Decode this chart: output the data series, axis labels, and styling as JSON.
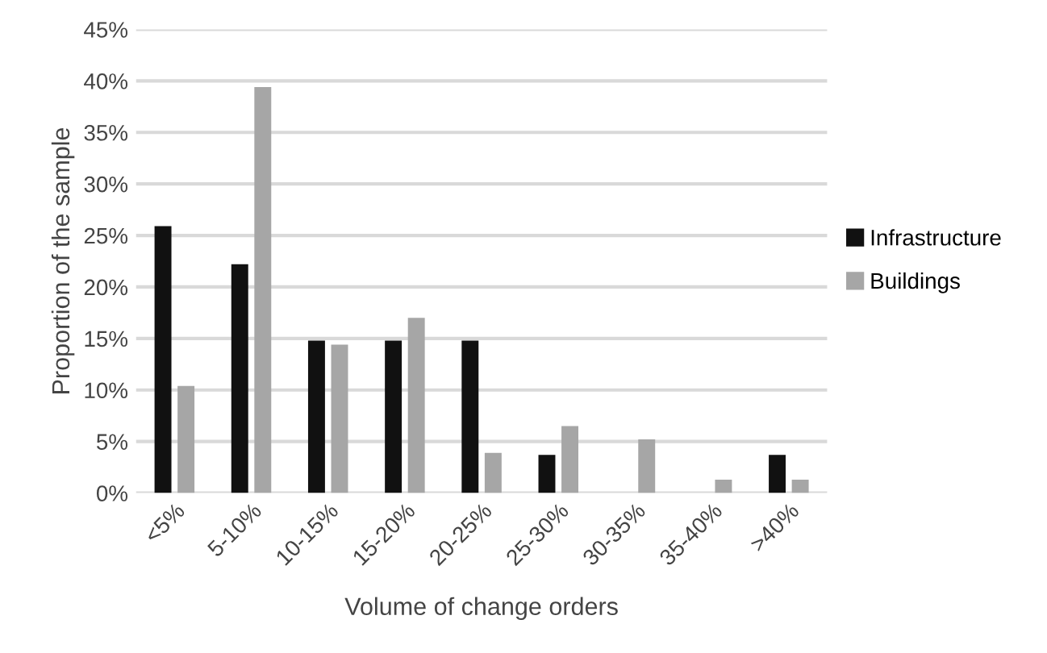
{
  "chart_data": {
    "type": "bar",
    "xlabel": "Volume of change orders",
    "ylabel": "Proportion of the sample",
    "categories": [
      "<5%",
      "5-10%",
      "10-15%",
      "15-20%",
      "20-25%",
      "25-30%",
      "30-35%",
      "35-40%",
      ">40%"
    ],
    "series": [
      {
        "name": "Infrastructure",
        "color": "#111111",
        "values": [
          25.9,
          22.2,
          14.8,
          14.8,
          14.8,
          3.7,
          0,
          0,
          3.7
        ]
      },
      {
        "name": "Buildings",
        "color": "#a6a6a6",
        "values": [
          10.4,
          39.4,
          14.4,
          17.0,
          3.9,
          6.5,
          5.2,
          1.3,
          1.3
        ]
      }
    ],
    "ylim": [
      0,
      45
    ],
    "yticks": [
      {
        "value": 0,
        "label": "0%"
      },
      {
        "value": 5,
        "label": "5%"
      },
      {
        "value": 10,
        "label": "10%"
      },
      {
        "value": 15,
        "label": "15%"
      },
      {
        "value": 20,
        "label": "20%"
      },
      {
        "value": 25,
        "label": "25%"
      },
      {
        "value": 30,
        "label": "30%"
      },
      {
        "value": 35,
        "label": "35%"
      },
      {
        "value": 40,
        "label": "40%"
      },
      {
        "value": 45,
        "label": "45%"
      }
    ],
    "grid": "y",
    "legend": "right"
  }
}
